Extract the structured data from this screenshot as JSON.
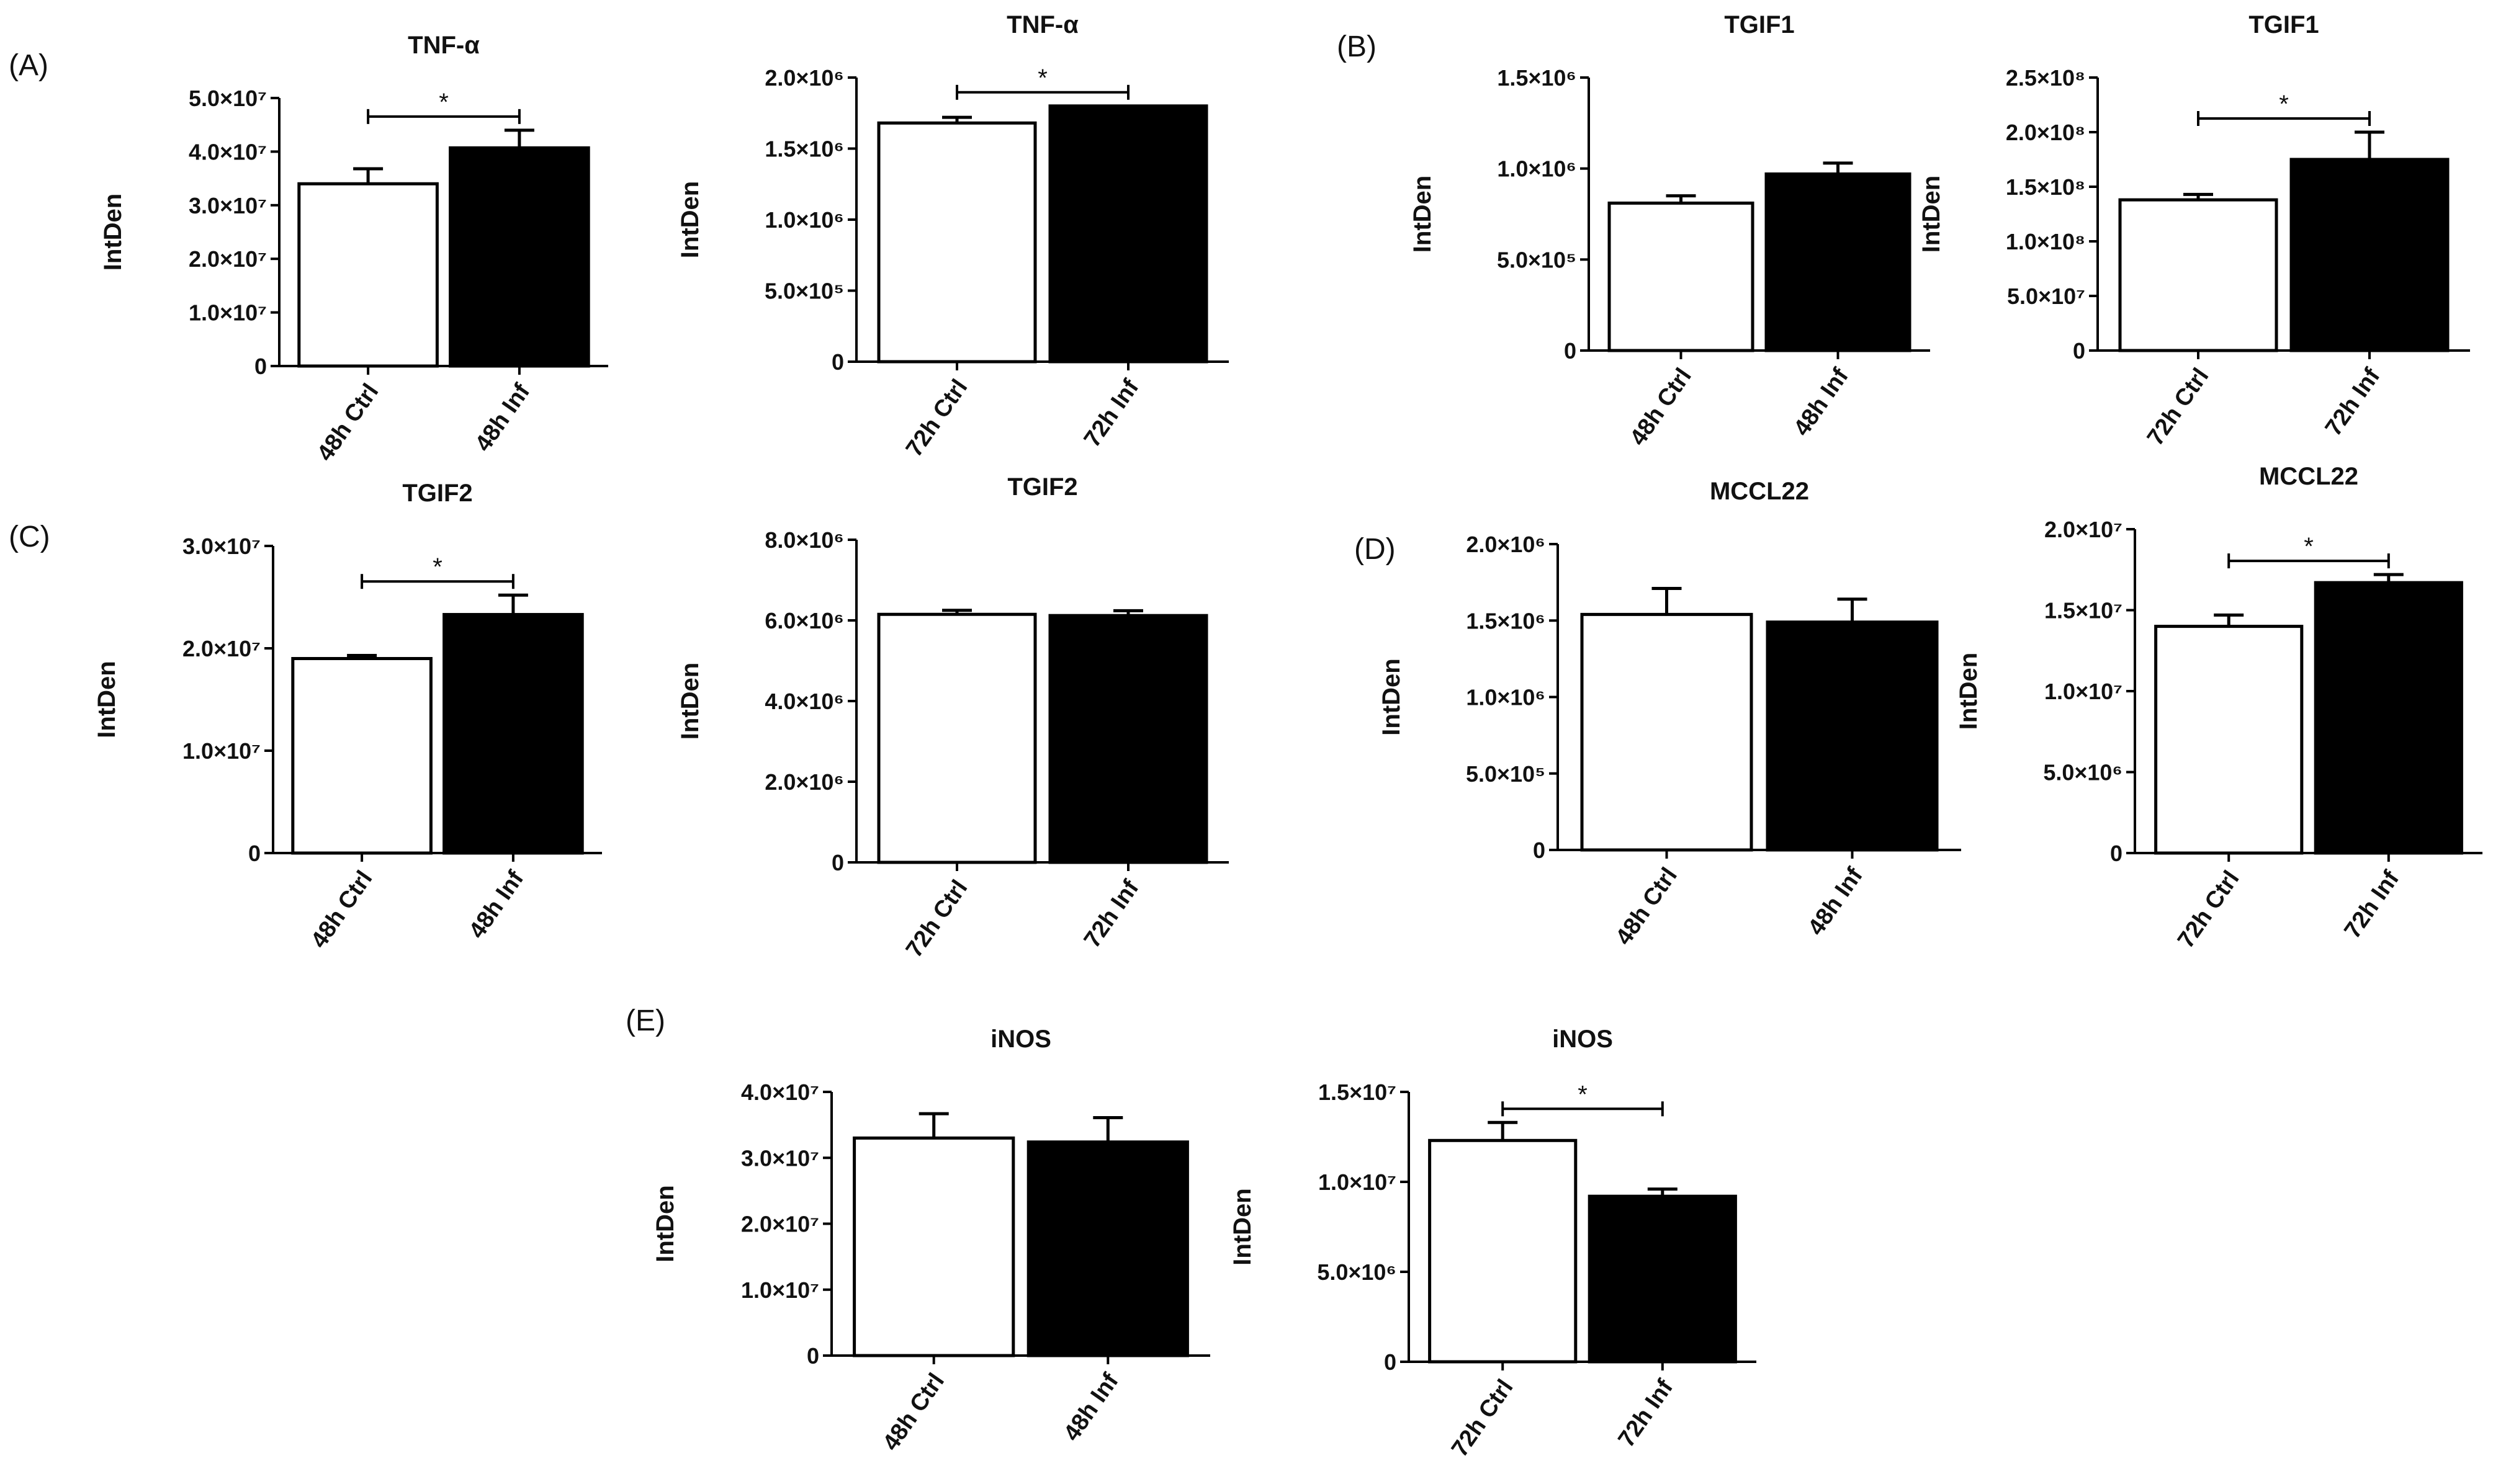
{
  "figure": {
    "panel_labels": [
      "(A)",
      "(B)",
      "(C)",
      "(D)",
      "(E)"
    ],
    "colors": {
      "axis": "#000000",
      "ctrl_fill": "#ffffff",
      "inf_fill": "#000000"
    }
  },
  "chart_data": [
    {
      "type": "bar",
      "panel": "(A)",
      "title": "TNF-α",
      "xlabel": "",
      "ylabel": "IntDen",
      "categories": [
        "48h Ctrl",
        "48h Inf"
      ],
      "values": [
        34000000,
        40700000
      ],
      "errors": [
        2800000,
        3300000
      ],
      "ylim": [
        0,
        50000000
      ],
      "yticks": [
        0,
        10000000,
        20000000,
        30000000,
        40000000,
        50000000
      ],
      "ytick_labels": [
        "0",
        "1.0×10⁷",
        "2.0×10⁷",
        "3.0×10⁷",
        "4.0×10⁷",
        "5.0×10⁷"
      ],
      "significance": "*"
    },
    {
      "type": "bar",
      "panel": "(A)",
      "title": "TNF-α",
      "xlabel": "",
      "ylabel": "IntDen",
      "categories": [
        "72h Ctrl",
        "72h Inf"
      ],
      "values": [
        1680000,
        1800000
      ],
      "errors": [
        40000,
        0
      ],
      "ylim": [
        0,
        2000000
      ],
      "yticks": [
        0,
        500000,
        1000000,
        1500000,
        2000000
      ],
      "ytick_labels": [
        "0",
        "5.0×10⁵",
        "1.0×10⁶",
        "1.5×10⁶",
        "2.0×10⁶"
      ],
      "significance": "*"
    },
    {
      "type": "bar",
      "panel": "(B)",
      "title": "TGIF1",
      "xlabel": "",
      "ylabel": "IntDen",
      "categories": [
        "48h Ctrl",
        "48h Inf"
      ],
      "values": [
        810000,
        970000
      ],
      "errors": [
        40000,
        60000
      ],
      "ylim": [
        0,
        1500000
      ],
      "yticks": [
        0,
        500000,
        1000000,
        1500000
      ],
      "ytick_labels": [
        "0",
        "5.0×10⁵",
        "1.0×10⁶",
        "1.5×10⁶"
      ],
      "significance": ""
    },
    {
      "type": "bar",
      "panel": "(B)",
      "title": "TGIF1",
      "xlabel": "",
      "ylabel": "IntDen",
      "categories": [
        "72h Ctrl",
        "72h Inf"
      ],
      "values": [
        138000000,
        175000000
      ],
      "errors": [
        5000000,
        25000000
      ],
      "ylim": [
        0,
        250000000
      ],
      "yticks": [
        0,
        50000000,
        100000000,
        150000000,
        200000000,
        250000000
      ],
      "ytick_labels": [
        "0",
        "5.0×10⁷",
        "1.0×10⁸",
        "1.5×10⁸",
        "2.0×10⁸",
        "2.5×10⁸"
      ],
      "significance": "*"
    },
    {
      "type": "bar",
      "panel": "(C)",
      "title": "TGIF2",
      "xlabel": "",
      "ylabel": "IntDen",
      "categories": [
        "48h Ctrl",
        "48h Inf"
      ],
      "values": [
        19000000,
        23300000
      ],
      "errors": [
        300000,
        1900000
      ],
      "ylim": [
        0,
        30000000
      ],
      "yticks": [
        0,
        10000000,
        20000000,
        30000000
      ],
      "ytick_labels": [
        "0",
        "1.0×10⁷",
        "2.0×10⁷",
        "3.0×10⁷"
      ],
      "significance": "*"
    },
    {
      "type": "bar",
      "panel": "(C)",
      "title": "TGIF2",
      "xlabel": "",
      "ylabel": "IntDen",
      "categories": [
        "72h Ctrl",
        "72h Inf"
      ],
      "values": [
        6150000,
        6120000
      ],
      "errors": [
        100000,
        120000
      ],
      "ylim": [
        0,
        8000000
      ],
      "yticks": [
        0,
        2000000,
        4000000,
        6000000,
        8000000
      ],
      "ytick_labels": [
        "0",
        "2.0×10⁶",
        "4.0×10⁶",
        "6.0×10⁶",
        "8.0×10⁶"
      ],
      "significance": ""
    },
    {
      "type": "bar",
      "panel": "(D)",
      "title": "MCCL22",
      "xlabel": "",
      "ylabel": "IntDen",
      "categories": [
        "48h Ctrl",
        "48h Inf"
      ],
      "values": [
        1540000,
        1490000
      ],
      "errors": [
        170000,
        150000
      ],
      "ylim": [
        0,
        2000000
      ],
      "yticks": [
        0,
        500000,
        1000000,
        1500000,
        2000000
      ],
      "ytick_labels": [
        "0",
        "5.0×10⁵",
        "1.0×10⁶",
        "1.5×10⁶",
        "2.0×10⁶"
      ],
      "significance": ""
    },
    {
      "type": "bar",
      "panel": "(D)",
      "title": "MCCL22",
      "xlabel": "",
      "ylabel": "IntDen",
      "categories": [
        "72h Ctrl",
        "72h Inf"
      ],
      "values": [
        14000000,
        16700000
      ],
      "errors": [
        700000,
        500000
      ],
      "ylim": [
        0,
        20000000
      ],
      "yticks": [
        0,
        5000000,
        10000000,
        15000000,
        20000000
      ],
      "ytick_labels": [
        "0",
        "5.0×10⁶",
        "1.0×10⁷",
        "1.5×10⁷",
        "2.0×10⁷"
      ],
      "significance": "*"
    },
    {
      "type": "bar",
      "panel": "(E)",
      "title": "iNOS",
      "xlabel": "",
      "ylabel": "IntDen",
      "categories": [
        "48h Ctrl",
        "48h Inf"
      ],
      "values": [
        33000000,
        32400000
      ],
      "errors": [
        3700000,
        3700000
      ],
      "ylim": [
        0,
        40000000
      ],
      "yticks": [
        0,
        10000000,
        20000000,
        30000000,
        40000000
      ],
      "ytick_labels": [
        "0",
        "1.0×10⁷",
        "2.0×10⁷",
        "3.0×10⁷",
        "4.0×10⁷"
      ],
      "significance": ""
    },
    {
      "type": "bar",
      "panel": "(E)",
      "title": "iNOS",
      "xlabel": "",
      "ylabel": "IntDen",
      "categories": [
        "72h Ctrl",
        "72h Inf"
      ],
      "values": [
        12300000,
        9200000
      ],
      "errors": [
        1000000,
        400000
      ],
      "ylim": [
        0,
        15000000
      ],
      "yticks": [
        0,
        5000000,
        10000000,
        15000000
      ],
      "ytick_labels": [
        "0",
        "5.0×10⁶",
        "1.0×10⁷",
        "1.5×10⁷"
      ],
      "significance": "*"
    }
  ]
}
